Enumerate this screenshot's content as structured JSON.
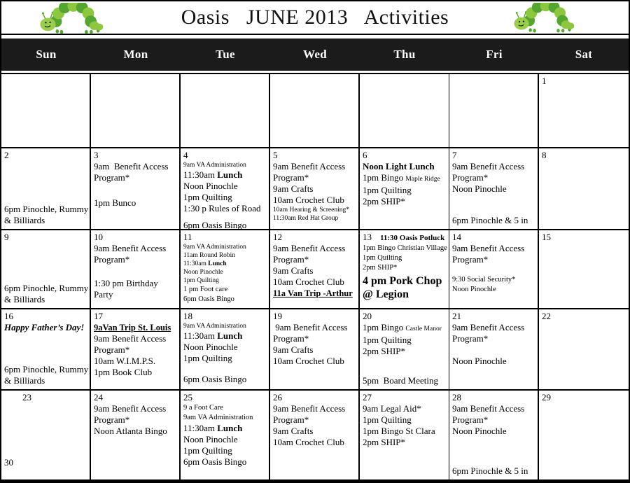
{
  "title": "Oasis   JUNE 2013   Activities",
  "icons": {
    "left": "caterpillar-icon",
    "right": "caterpillar-icon"
  },
  "colors": {
    "background": "#ffffff",
    "header_bar": "#1b1b1b",
    "header_text": "#ffffff",
    "grid_line": "#000000",
    "text": "#000000",
    "caterpillar_light": "#8dc63f",
    "caterpillar_dark": "#55a630"
  },
  "weekdays": [
    "Sun",
    "Mon",
    "Tue",
    "Wed",
    "Thu",
    "Fri",
    "Sat"
  ],
  "weeks": [
    {
      "cells": [
        {},
        {},
        {},
        {},
        {},
        {},
        {
          "date": "1"
        }
      ]
    },
    {
      "cells": [
        {
          "date": "2",
          "bottom": [
            {
              "parts": [
                {
                  "t": "6pm Pinochle, Rummy & Billiards"
                }
              ]
            }
          ]
        },
        {
          "date": "3",
          "events": [
            {
              "parts": [
                {
                  "t": "9am  Benefit Access Program*"
                }
              ]
            },
            {
              "parts": [
                {
                  "t": "1pm Bunco"
                }
              ],
              "gap": 20
            }
          ]
        },
        {
          "date": "4",
          "events": [
            {
              "parts": [
                {
                  "t": "9am VA Administration"
                }
              ],
              "cls": "sm"
            },
            {
              "parts": [
                {
                  "t": "11:30am "
                },
                {
                  "t": "Lunch",
                  "b": true
                }
              ]
            },
            {
              "parts": [
                {
                  "t": "Noon Pinochle"
                }
              ]
            },
            {
              "parts": [
                {
                  "t": "1pm Quilting"
                }
              ]
            },
            {
              "parts": [
                {
                  "t": "1:30 p Rules of Road"
                }
              ]
            },
            {
              "parts": [
                {
                  "t": "6pm Oasis Bingo"
                }
              ],
              "gap": 8
            }
          ]
        },
        {
          "date": "5",
          "events": [
            {
              "parts": [
                {
                  "t": "9am Benefit Access Program*"
                }
              ]
            },
            {
              "parts": [
                {
                  "t": "9am Crafts"
                }
              ]
            },
            {
              "parts": [
                {
                  "t": "10am Crochet Club"
                }
              ]
            },
            {
              "parts": [
                {
                  "t": "10am Hearing & Screening*"
                }
              ],
              "cls": "sm"
            },
            {
              "parts": [
                {
                  "t": "11:30am Red Hat Group"
                }
              ],
              "cls": "sm"
            }
          ]
        },
        {
          "date": "6",
          "events": [
            {
              "parts": [
                {
                  "t": "Noon Light Lunch",
                  "b": true
                }
              ]
            },
            {
              "parts": [
                {
                  "t": "1pm Bingo "
                },
                {
                  "t": "Maple Ridge",
                  "sm": true
                }
              ]
            },
            {
              "parts": [
                {
                  "t": "1pm Quilting"
                }
              ]
            },
            {
              "parts": [
                {
                  "t": "2pm SHIP*"
                }
              ]
            }
          ]
        },
        {
          "date": "7",
          "events": [
            {
              "parts": [
                {
                  "t": "9am Benefit Access Program*"
                }
              ]
            },
            {
              "parts": [
                {
                  "t": "Noon Pinochle"
                }
              ]
            }
          ],
          "bottom": [
            {
              "parts": [
                {
                  "t": "6pm Pinochle & 5 in"
                }
              ]
            }
          ]
        },
        {
          "date": "8"
        }
      ]
    },
    {
      "cells": [
        {
          "date": "9",
          "bottom": [
            {
              "parts": [
                {
                  "t": "6pm Pinochle, Rummy & Billiards"
                }
              ]
            }
          ]
        },
        {
          "date": "10",
          "events": [
            {
              "parts": [
                {
                  "t": "9am Benefit Access Program*"
                }
              ]
            },
            {
              "parts": [
                {
                  "t": "1:30 pm Birthday Party"
                }
              ],
              "gap": 18
            }
          ]
        },
        {
          "date": "11",
          "events": [
            {
              "parts": [
                {
                  "t": "9am VA Administration"
                }
              ],
              "cls": "sm"
            },
            {
              "parts": [
                {
                  "t": "11am Round Robin"
                }
              ],
              "cls": "sm"
            },
            {
              "parts": [
                {
                  "t": "11:30am "
                },
                {
                  "t": "Lunch",
                  "b": true
                }
              ],
              "cls": "sm"
            },
            {
              "parts": [
                {
                  "t": "Noon Pinochle"
                }
              ],
              "cls": "sm"
            },
            {
              "parts": [
                {
                  "t": "1pm Quilting"
                }
              ],
              "cls": "sm"
            },
            {
              "parts": [
                {
                  "t": "1 pm Foot care"
                }
              ],
              "cls": "ms"
            },
            {
              "parts": [
                {
                  "t": "6pm Oasis Bingo"
                }
              ],
              "cls": "ms"
            }
          ]
        },
        {
          "date": "12",
          "events": [
            {
              "parts": [
                {
                  "t": "9am Benefit Access Program*"
                }
              ]
            },
            {
              "parts": [
                {
                  "t": "9am Crafts"
                }
              ]
            },
            {
              "parts": [
                {
                  "t": "10am Crochet Club"
                }
              ]
            },
            {
              "parts": [
                {
                  "t": "11a Van Trip -Arthur",
                  "b": true
                }
              ],
              "cls": "bu"
            }
          ]
        },
        {
          "date": "13",
          "date_suffix": "11:30 Oasis Potluck",
          "events": [
            {
              "parts": [
                {
                  "t": "1pm Bingo Christian Village"
                }
              ],
              "cls": "ms"
            },
            {
              "parts": [
                {
                  "t": "1pm Quilting"
                }
              ],
              "cls": "ms"
            },
            {
              "parts": [
                {
                  "t": "2pm SHIP*"
                }
              ],
              "cls": "ms"
            },
            {
              "parts": [
                {
                  "t": "4 pm Pork Chop @ Legion",
                  "b": true
                }
              ],
              "cls": "lg"
            }
          ]
        },
        {
          "date": "14",
          "events": [
            {
              "parts": [
                {
                  "t": "9am Benefit Access Program*"
                }
              ]
            },
            {
              "parts": [
                {
                  "t": "9:30 Social Security*"
                }
              ],
              "cls": "ms",
              "gap": 14
            },
            {
              "parts": [
                {
                  "t": "Noon Pinochle"
                }
              ],
              "cls": "ms"
            }
          ]
        },
        {
          "date": "15"
        }
      ]
    },
    {
      "cells": [
        {
          "date": "16",
          "events": [
            {
              "parts": [
                {
                  "t": "Happy Father’s Day!",
                  "b": true
                }
              ],
              "cls": "bi"
            }
          ],
          "bottom": [
            {
              "parts": [
                {
                  "t": "6pm Pinochle, Rummy & Billiards"
                }
              ]
            }
          ]
        },
        {
          "date": "17",
          "events": [
            {
              "parts": [
                {
                  "t": "9aVan Trip St. Louis",
                  "b": true
                }
              ],
              "cls": "bu"
            },
            {
              "parts": [
                {
                  "t": "9am Benefit Access Program*"
                }
              ]
            },
            {
              "parts": [
                {
                  "t": "10am W.I.M.P.S."
                }
              ]
            },
            {
              "parts": [
                {
                  "t": "1pm Book Club"
                }
              ]
            }
          ]
        },
        {
          "date": "18",
          "events": [
            {
              "parts": [
                {
                  "t": "9am VA Administration"
                }
              ],
              "cls": "sm"
            },
            {
              "parts": [
                {
                  "t": "11:30am "
                },
                {
                  "t": "Lunch",
                  "b": true
                }
              ]
            },
            {
              "parts": [
                {
                  "t": "Noon Pinochle"
                }
              ]
            },
            {
              "parts": [
                {
                  "t": "1pm Quilting"
                }
              ]
            },
            {
              "parts": [
                {
                  "t": "6pm Oasis Bingo"
                }
              ],
              "gap": 14
            }
          ]
        },
        {
          "date": "19",
          "events": [
            {
              "parts": [
                {
                  "t": " 9am Benefit Access Program*"
                }
              ]
            },
            {
              "parts": [
                {
                  "t": "9am Crafts"
                }
              ]
            },
            {
              "parts": [
                {
                  "t": "10am Crochet Club"
                }
              ]
            }
          ]
        },
        {
          "date": "20",
          "events": [
            {
              "parts": [
                {
                  "t": "1pm Bingo "
                },
                {
                  "t": "Castle Manor",
                  "sm": true
                }
              ]
            },
            {
              "parts": [
                {
                  "t": "1pm Quilting"
                }
              ]
            },
            {
              "parts": [
                {
                  "t": "2pm SHIP*"
                }
              ]
            }
          ],
          "bottom": [
            {
              "parts": [
                {
                  "t": "5pm  Board Meeting"
                }
              ]
            }
          ]
        },
        {
          "date": "21",
          "events": [
            {
              "parts": [
                {
                  "t": "9am Benefit Access Program*"
                }
              ]
            },
            {
              "parts": [
                {
                  "t": "Noon Pinochle"
                }
              ],
              "gap": 16
            }
          ]
        },
        {
          "date": "22"
        }
      ]
    },
    {
      "cells": [
        {
          "date": "23",
          "indent": true,
          "date2": "30"
        },
        {
          "date": "24",
          "events": [
            {
              "parts": [
                {
                  "t": "9am Benefit Access Program*"
                }
              ]
            },
            {
              "parts": [
                {
                  "t": "Noon Atlanta Bingo"
                }
              ]
            }
          ]
        },
        {
          "date": "25",
          "events": [
            {
              "parts": [
                {
                  "t": "9 a Foot Care"
                }
              ],
              "cls": "ms"
            },
            {
              "parts": [
                {
                  "t": "9am VA Administration"
                }
              ],
              "cls": "ms"
            },
            {
              "parts": [
                {
                  "t": "11:30am "
                },
                {
                  "t": "Lunch",
                  "b": true
                }
              ]
            },
            {
              "parts": [
                {
                  "t": "Noon Pinochle"
                }
              ]
            },
            {
              "parts": [
                {
                  "t": "1pm Quilting"
                }
              ]
            },
            {
              "parts": [
                {
                  "t": "6pm Oasis Bingo"
                }
              ]
            }
          ]
        },
        {
          "date": "26",
          "events": [
            {
              "parts": [
                {
                  "t": "9am Benefit Access Program*"
                }
              ]
            },
            {
              "parts": [
                {
                  "t": "9am Crafts"
                }
              ]
            },
            {
              "parts": [
                {
                  "t": "10am Crochet Club"
                }
              ]
            }
          ]
        },
        {
          "date": "27",
          "events": [
            {
              "parts": [
                {
                  "t": "9am Legal Aid*"
                }
              ]
            },
            {
              "parts": [
                {
                  "t": "1pm Quilting"
                }
              ]
            },
            {
              "parts": [
                {
                  "t": "1pm Bingo St Clara"
                }
              ]
            },
            {
              "parts": [
                {
                  "t": "2pm SHIP*"
                }
              ]
            }
          ]
        },
        {
          "date": "28",
          "events": [
            {
              "parts": [
                {
                  "t": "9am Benefit Access Program*"
                }
              ]
            },
            {
              "parts": [
                {
                  "t": "Noon Pinochle"
                }
              ]
            }
          ],
          "bottom": [
            {
              "parts": [
                {
                  "t": "6pm Pinochle & 5 in"
                }
              ]
            }
          ]
        },
        {
          "date": "29"
        }
      ]
    }
  ]
}
